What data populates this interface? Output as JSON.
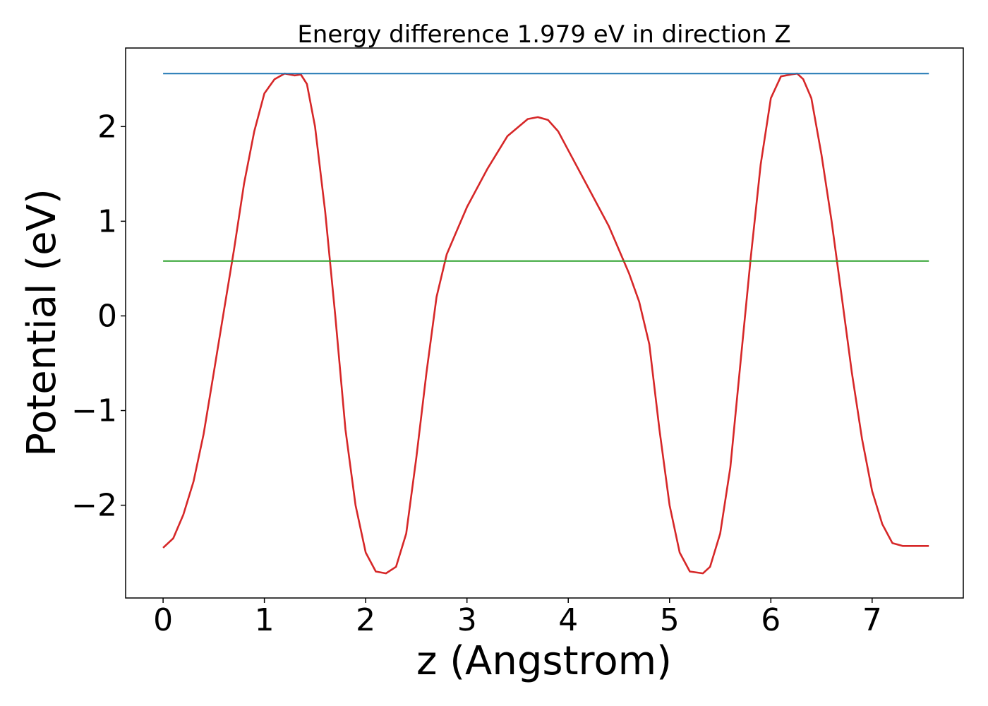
{
  "chart_data": {
    "type": "line",
    "title": "Energy difference 1.979 eV in direction Z",
    "xlabel": "z (Angstrom)",
    "ylabel": "Potential (eV)",
    "xlim": [
      -0.37,
      7.9
    ],
    "ylim": [
      -2.98,
      2.83
    ],
    "xticks": [
      0,
      1,
      2,
      3,
      4,
      5,
      6,
      7
    ],
    "xtick_labels": [
      "0",
      "1",
      "2",
      "3",
      "4",
      "5",
      "6",
      "7"
    ],
    "yticks": [
      -2,
      -1,
      0,
      1,
      2
    ],
    "ytick_labels": [
      "−2",
      "−1",
      "0",
      "1",
      "2"
    ],
    "grid": false,
    "series": [
      {
        "color": "#d62728",
        "x": [
          0,
          0.1,
          0.2,
          0.3,
          0.4,
          0.5,
          0.6,
          0.7,
          0.8,
          0.9,
          1.0,
          1.1,
          1.2,
          1.3,
          1.36,
          1.42,
          1.5,
          1.6,
          1.7,
          1.8,
          1.9,
          2.0,
          2.1,
          2.2,
          2.3,
          2.4,
          2.5,
          2.6,
          2.7,
          2.8,
          2.9,
          3.0,
          3.2,
          3.4,
          3.6,
          3.7,
          3.8,
          3.9,
          4.0,
          4.2,
          4.4,
          4.6,
          4.7,
          4.8,
          4.9,
          5.0,
          5.1,
          5.2,
          5.33,
          5.4,
          5.5,
          5.6,
          5.7,
          5.8,
          5.9,
          6.0,
          6.1,
          6.2,
          6.26,
          6.32,
          6.4,
          6.5,
          6.6,
          6.7,
          6.8,
          6.9,
          7.0,
          7.1,
          7.2,
          7.3,
          7.4,
          7.5,
          7.56
        ],
        "y": [
          -2.45,
          -2.35,
          -2.1,
          -1.75,
          -1.25,
          -0.6,
          0.05,
          0.7,
          1.4,
          1.95,
          2.35,
          2.5,
          2.56,
          2.54,
          2.55,
          2.45,
          2.0,
          1.1,
          0.0,
          -1.2,
          -2.0,
          -2.5,
          -2.7,
          -2.72,
          -2.65,
          -2.3,
          -1.5,
          -0.6,
          0.2,
          0.65,
          0.9,
          1.15,
          1.55,
          1.9,
          2.08,
          2.1,
          2.07,
          1.95,
          1.75,
          1.35,
          0.95,
          0.45,
          0.15,
          -0.3,
          -1.2,
          -2.0,
          -2.5,
          -2.7,
          -2.72,
          -2.65,
          -2.3,
          -1.6,
          -0.5,
          0.6,
          1.6,
          2.3,
          2.53,
          2.55,
          2.56,
          2.5,
          2.3,
          1.7,
          1.0,
          0.2,
          -0.6,
          -1.3,
          -1.85,
          -2.2,
          -2.4,
          -2.43,
          -2.43,
          -2.43,
          -2.43
        ]
      },
      {
        "color": "#1f77b4",
        "x": [
          0,
          7.56
        ],
        "y": [
          2.56,
          2.56
        ]
      },
      {
        "color": "#2ca02c",
        "x": [
          0,
          7.56
        ],
        "y": [
          0.58,
          0.58
        ]
      }
    ]
  }
}
